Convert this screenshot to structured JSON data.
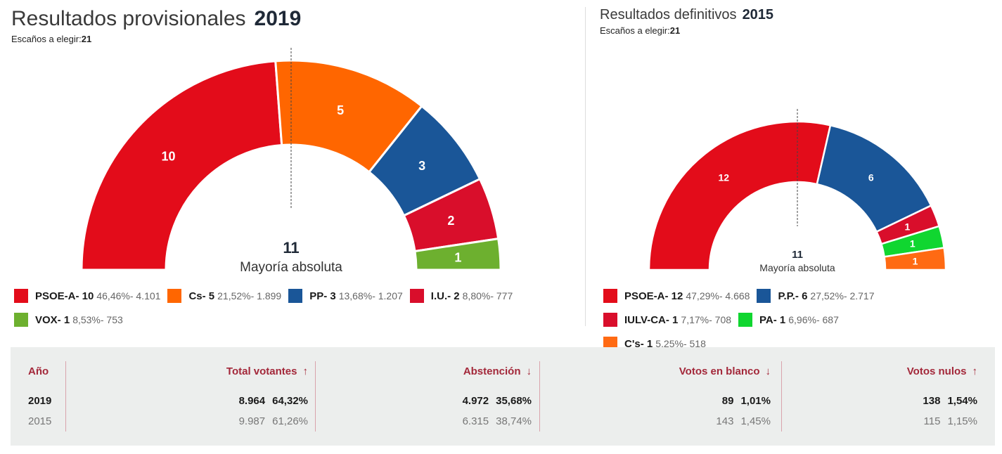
{
  "elections": [
    {
      "title_text": "Resultados provisionales",
      "year": "2019",
      "seats_label": "Escaños a elegir:",
      "seats_total": "21",
      "majority_number": "11",
      "majority_label": "Mayoría absoluta"
    },
    {
      "title_text": "Resultados definitivos",
      "year": "2015",
      "seats_label": "Escaños a elegir:",
      "seats_total": "21",
      "majority_number": "11",
      "majority_label": "Mayoría absoluta"
    }
  ],
  "chart_data": [
    {
      "type": "pie",
      "subtype": "half-donut parliament",
      "title": "Resultados provisionales 2019",
      "total_seats": 21,
      "majority": 11,
      "series": [
        {
          "name": "PSOE-A",
          "seats": 10,
          "percent": "46,46%",
          "votes": "4.101",
          "color": "#e30c1a",
          "label_prefix": "PSOE-A- 10",
          "stats": "46,46%- 4.101"
        },
        {
          "name": "Cs",
          "seats": 5,
          "percent": "21,52%",
          "votes": "1.899",
          "color": "#ff6600",
          "label_prefix": "Cs- 5",
          "stats": "21,52%- 1.899"
        },
        {
          "name": "PP",
          "seats": 3,
          "percent": "13,68%",
          "votes": "1.207",
          "color": "#1a5698",
          "label_prefix": "PP- 3",
          "stats": "13,68%- 1.207"
        },
        {
          "name": "I.U.",
          "seats": 2,
          "percent": "8,80%",
          "votes": "777",
          "color": "#d90e2b",
          "label_prefix": "I.U.- 2",
          "stats": "8,80%- 777"
        },
        {
          "name": "VOX",
          "seats": 1,
          "percent": "8,53%",
          "votes": "753",
          "color": "#6db02f",
          "label_prefix": "VOX- 1",
          "stats": "8,53%- 753"
        }
      ]
    },
    {
      "type": "pie",
      "subtype": "half-donut parliament",
      "title": "Resultados definitivos 2015",
      "total_seats": 21,
      "majority": 11,
      "series": [
        {
          "name": "PSOE-A",
          "seats": 12,
          "percent": "47,29%",
          "votes": "4.668",
          "color": "#e30c1a",
          "label_prefix": "PSOE-A- 12",
          "stats": "47,29%- 4.668"
        },
        {
          "name": "P.P.",
          "seats": 6,
          "percent": "27,52%",
          "votes": "2.717",
          "color": "#1a5698",
          "label_prefix": "P.P.- 6",
          "stats": "27,52%- 2.717"
        },
        {
          "name": "IULV-CA",
          "seats": 1,
          "percent": "7,17%",
          "votes": "708",
          "color": "#d90e2b",
          "label_prefix": "IULV-CA- 1",
          "stats": "7,17%- 708"
        },
        {
          "name": "PA",
          "seats": 1,
          "percent": "6,96%",
          "votes": "687",
          "color": "#10d630",
          "label_prefix": "PA- 1",
          "stats": "6,96%- 687"
        },
        {
          "name": "C's",
          "seats": 1,
          "percent": "5,25%",
          "votes": "518",
          "color": "#ff6a13",
          "label_prefix": "C's- 1",
          "stats": "5,25%- 518"
        }
      ]
    }
  ],
  "table": {
    "headers": {
      "year": "Año",
      "total": "Total votantes",
      "abstention": "Abstención",
      "blank": "Votos en blanco",
      "null": "Votos nulos"
    },
    "arrows": {
      "total": "↑",
      "abstention": "↓",
      "blank": "↓",
      "null": "↑"
    },
    "rows": [
      {
        "year": "2019",
        "total_n": "8.964",
        "total_p": "64,32%",
        "abs_n": "4.972",
        "abs_p": "35,68%",
        "blank_n": "89",
        "blank_p": "1,01%",
        "null_n": "138",
        "null_p": "1,54%"
      },
      {
        "year": "2015",
        "total_n": "9.987",
        "total_p": "61,26%",
        "abs_n": "6.315",
        "abs_p": "38,74%",
        "blank_n": "143",
        "blank_p": "1,45%",
        "null_n": "115",
        "null_p": "1,15%"
      }
    ]
  }
}
